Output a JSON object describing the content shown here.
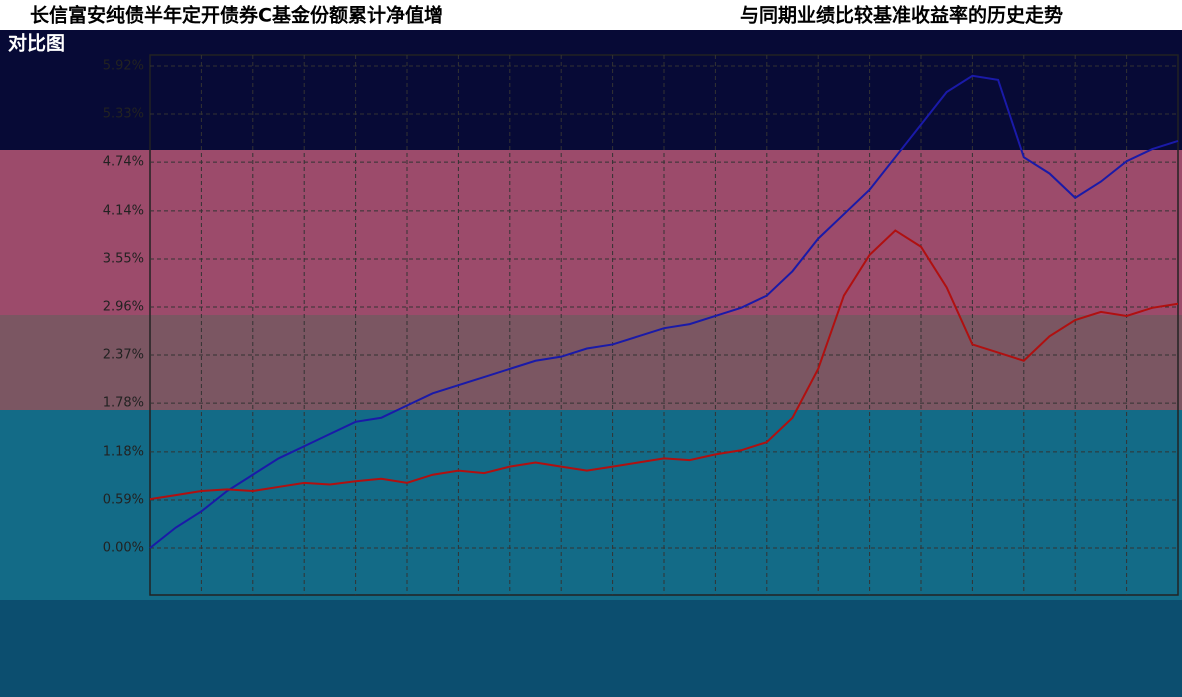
{
  "chart_data": {
    "type": "line",
    "title": "长信富安纯债半年定开债券C基金份额累计净值增",
    "title_continued": "与同期业绩比较基准收益率的历史走势",
    "title_line2": "对比图",
    "x": [
      0,
      1,
      2,
      3,
      4,
      5,
      6,
      7,
      8,
      9,
      10,
      11,
      12,
      13,
      14,
      15,
      16,
      17,
      18,
      19,
      20,
      21,
      22,
      23,
      24,
      25,
      26,
      27,
      28,
      29,
      30,
      31,
      32,
      33,
      34,
      35,
      36,
      37,
      38,
      39,
      40
    ],
    "xlim": [
      0,
      40
    ],
    "series": [
      {
        "color": "#1a1aa8",
        "values": [
          0.0,
          0.25,
          0.45,
          0.7,
          0.9,
          1.1,
          1.25,
          1.4,
          1.55,
          1.6,
          1.75,
          1.9,
          2.0,
          2.1,
          2.2,
          2.3,
          2.35,
          2.45,
          2.5,
          2.6,
          2.7,
          2.75,
          2.85,
          2.95,
          3.1,
          3.4,
          3.8,
          4.1,
          4.4,
          4.8,
          5.2,
          5.6,
          5.8,
          5.75,
          4.8,
          4.6,
          4.3,
          4.5,
          4.75,
          4.9,
          5.0
        ]
      },
      {
        "color": "#b01010",
        "values": [
          0.6,
          0.65,
          0.7,
          0.72,
          0.7,
          0.75,
          0.8,
          0.78,
          0.82,
          0.85,
          0.8,
          0.9,
          0.95,
          0.92,
          1.0,
          1.05,
          1.0,
          0.95,
          1.0,
          1.05,
          1.1,
          1.08,
          1.15,
          1.2,
          1.3,
          1.6,
          2.2,
          3.1,
          3.6,
          3.9,
          3.7,
          3.2,
          2.5,
          2.4,
          2.3,
          2.6,
          2.8,
          2.9,
          2.85,
          2.95,
          3.0
        ]
      }
    ],
    "ylim": [
      0,
      5.92
    ],
    "yticks": [
      {
        "value": 0,
        "label": "0.00%"
      },
      {
        "value": 0.59,
        "label": "0.59%"
      },
      {
        "value": 1.18,
        "label": "1.18%"
      },
      {
        "value": 1.78,
        "label": "1.78%"
      },
      {
        "value": 2.37,
        "label": "2.37%"
      },
      {
        "value": 2.96,
        "label": "2.96%"
      },
      {
        "value": 3.55,
        "label": "3.55%"
      },
      {
        "value": 4.14,
        "label": "4.14%"
      },
      {
        "value": 4.74,
        "label": "4.74%"
      },
      {
        "value": 5.33,
        "label": "5.33%"
      },
      {
        "value": 5.92,
        "label": "5.92%"
      }
    ],
    "grid": true
  }
}
